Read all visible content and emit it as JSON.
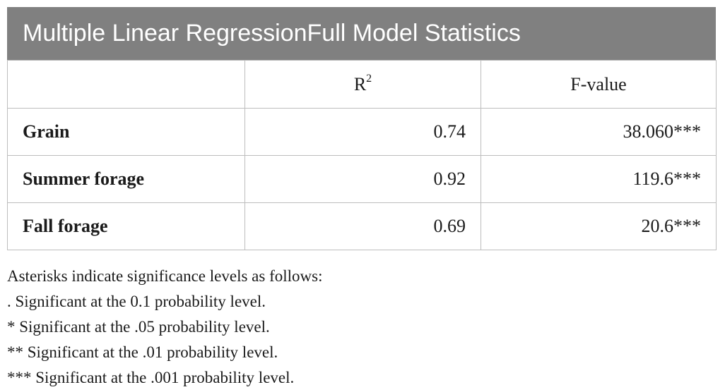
{
  "table": {
    "title": "Multiple Linear RegressionFull Model Statistics",
    "header": {
      "blank": "",
      "r2_base": "R",
      "r2_sup": "2",
      "fvalue": "F-value"
    },
    "rows": [
      {
        "label": "Grain",
        "r2": "0.74",
        "fvalue": "38.060***"
      },
      {
        "label": "Summer forage",
        "r2": "0.92",
        "fvalue": "119.6***"
      },
      {
        "label": "Fall forage",
        "r2": "0.69",
        "fvalue": "20.6***"
      }
    ]
  },
  "notes": [
    "Asterisks indicate significance levels as follows:",
    ". Significant at the 0.1 probability level.",
    "* Significant at the .05 probability level.",
    "** Significant at the .01 probability level.",
    "*** Significant at the .001 probability level."
  ],
  "colors": {
    "title_bg": "#808080",
    "title_text": "#ffffff",
    "border": "#bdbdbd"
  }
}
